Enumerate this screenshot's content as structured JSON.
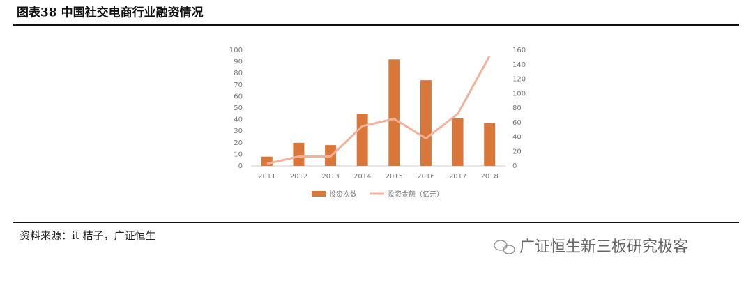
{
  "header": {
    "title": "图表38 中国社交电商行业融资情况"
  },
  "chart_data": {
    "type": "bar-line",
    "categories": [
      "2011",
      "2012",
      "2013",
      "2014",
      "2015",
      "2016",
      "2017",
      "2018"
    ],
    "series": [
      {
        "name": "投资次数",
        "type": "bar",
        "color": "#d9773a",
        "values": [
          8,
          20,
          18,
          45,
          92,
          74,
          41,
          37
        ]
      },
      {
        "name": "投资金额（亿元）",
        "type": "line",
        "axis": "y2",
        "color": "#f3b199",
        "values": [
          3,
          13,
          13,
          55,
          65,
          38,
          72,
          152
        ]
      }
    ],
    "ylim": [
      0,
      100
    ],
    "yticks": [
      0,
      10,
      20,
      30,
      40,
      50,
      60,
      70,
      80,
      90,
      100
    ],
    "y2lim": [
      0,
      160
    ],
    "y2ticks": [
      0,
      20,
      40,
      60,
      80,
      100,
      120,
      140,
      160
    ],
    "grid": false,
    "legend": "bottom"
  },
  "footer": {
    "source": "资料来源：it 桔子，广证恒生",
    "watermark": "广证恒生新三板研究极客"
  }
}
